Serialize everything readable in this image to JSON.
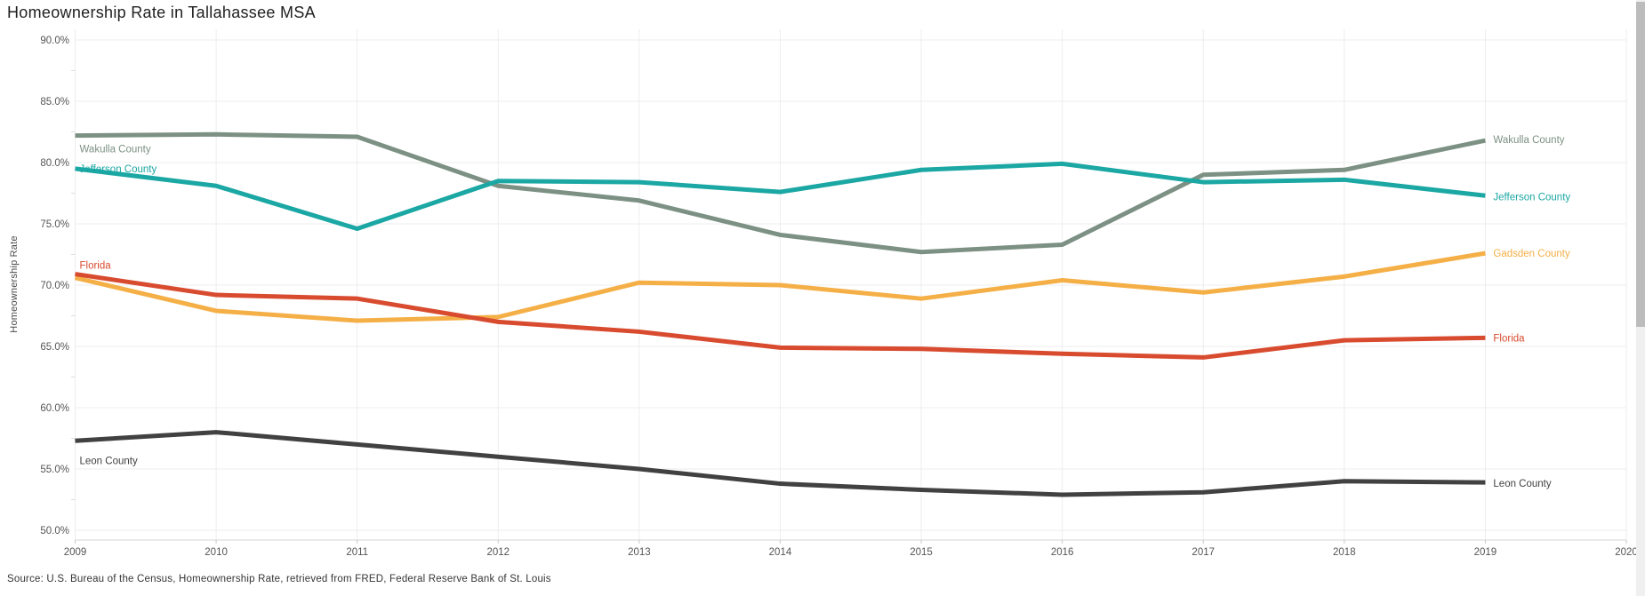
{
  "page": {
    "title": "Homeownership Rate in Tallahassee MSA",
    "source_note": "Source: U.S. Bureau of the Census, Homeownership Rate, retrieved from FRED, Federal Reserve Bank of St. Louis"
  },
  "chart_data": {
    "type": "line",
    "title": "Homeownership Rate in Tallahassee MSA",
    "xlabel": "",
    "ylabel": "Homeownership Rate",
    "x": [
      2009,
      2010,
      2011,
      2012,
      2013,
      2014,
      2015,
      2016,
      2017,
      2018,
      2019
    ],
    "x_axis_ticks": [
      2009,
      2010,
      2011,
      2012,
      2013,
      2014,
      2015,
      2016,
      2017,
      2018,
      2019,
      2020
    ],
    "ylim": [
      50,
      90
    ],
    "y_ticks": [
      50,
      55,
      60,
      65,
      70,
      75,
      80,
      85,
      90
    ],
    "y_tick_suffix": "%",
    "grid": true,
    "legend_position": "inline-start-end-labels",
    "series": [
      {
        "name": "Wakulla County",
        "color": "#7C9184",
        "values": [
          82.2,
          82.3,
          82.1,
          78.1,
          76.9,
          74.1,
          72.7,
          73.3,
          79.0,
          79.4,
          81.8
        ],
        "left_label": true,
        "left_label_dy": 19,
        "right_label": true,
        "right_label_dy": 3
      },
      {
        "name": "Jefferson County",
        "color": "#1BA7A3",
        "values": [
          79.5,
          78.1,
          74.6,
          78.5,
          78.4,
          77.6,
          79.4,
          79.9,
          78.4,
          78.6,
          77.3
        ],
        "left_label": true,
        "left_label_dy": 4,
        "right_label": true,
        "right_label_dy": 5
      },
      {
        "name": "Gadsden County",
        "color": "#F5AF47",
        "values": [
          70.6,
          67.9,
          67.1,
          67.4,
          70.2,
          70.0,
          68.9,
          70.4,
          69.4,
          70.7,
          72.6
        ],
        "left_label": false,
        "left_label_dy": 0,
        "right_label": true,
        "right_label_dy": 4
      },
      {
        "name": "Florida",
        "color": "#D84B2F",
        "values": [
          70.9,
          69.2,
          68.9,
          67.0,
          66.2,
          64.9,
          64.8,
          64.4,
          64.1,
          65.5,
          65.7
        ],
        "left_label": true,
        "left_label_dy": -6,
        "right_label": true,
        "right_label_dy": 4
      },
      {
        "name": "Leon County",
        "color": "#414141",
        "values": [
          57.3,
          58.0,
          57.0,
          56.0,
          55.0,
          53.8,
          53.3,
          52.9,
          53.1,
          54.0,
          53.9
        ],
        "left_label": true,
        "left_label_dy": 26,
        "right_label": true,
        "right_label_dy": 5
      }
    ]
  }
}
